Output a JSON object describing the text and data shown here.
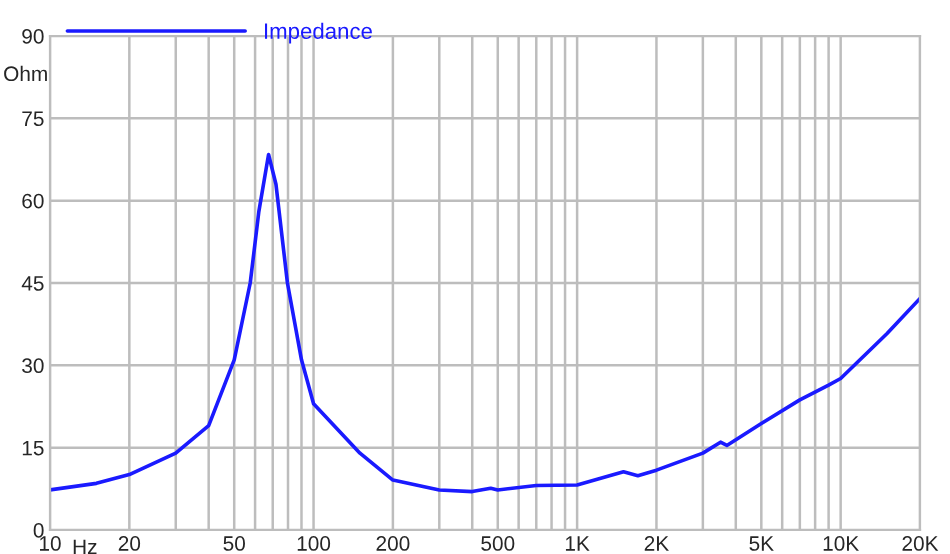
{
  "chart_data": {
    "type": "line",
    "xlabel": "Hz",
    "ylabel": "Ohm",
    "log": "x",
    "grid": true,
    "legend": "top left",
    "line_style": "solid",
    "marker": "none",
    "xlim": [
      10,
      20000
    ],
    "ylim": [
      0,
      90
    ],
    "xticks": [
      10,
      20,
      {
        "value": 30,
        "label": null
      },
      {
        "value": 40,
        "label": null
      },
      50,
      {
        "value": 60,
        "label": null
      },
      {
        "value": 70,
        "label": null
      },
      {
        "value": 80,
        "label": null
      },
      {
        "value": 90,
        "label": null
      },
      100,
      200,
      {
        "value": 300,
        "label": null
      },
      {
        "value": 400,
        "label": null
      },
      500,
      {
        "value": 600,
        "label": null
      },
      {
        "value": 700,
        "label": null
      },
      {
        "value": 800,
        "label": null
      },
      {
        "value": 900,
        "label": null
      },
      {
        "value": 1000,
        "label": "1K"
      },
      {
        "value": 2000,
        "label": "2K"
      },
      {
        "value": 3000,
        "label": null
      },
      {
        "value": 4000,
        "label": null
      },
      {
        "value": 5000,
        "label": "5K"
      },
      {
        "value": 6000,
        "label": null
      },
      {
        "value": 7000,
        "label": null
      },
      {
        "value": 8000,
        "label": null
      },
      {
        "value": 9000,
        "label": null
      },
      {
        "value": 10000,
        "label": "10K"
      },
      {
        "value": 20000,
        "label": "20K"
      }
    ],
    "yticks": [
      0,
      15,
      30,
      45,
      60,
      75,
      90
    ],
    "series": [
      {
        "name": "Impedance",
        "color": "#1a1aff",
        "x": [
          10,
          15,
          20,
          30,
          40,
          50,
          57.5,
          62,
          67.5,
          72,
          79.6,
          90,
          100,
          150,
          200,
          300,
          400,
          470,
          500,
          700,
          1000,
          1500,
          1700,
          2000,
          3000,
          3500,
          3700,
          5000,
          7000,
          9000,
          10000,
          15000,
          20000
        ],
        "values": [
          7.3,
          8.5,
          10.1,
          14,
          19,
          31,
          45,
          58,
          68.4,
          63,
          45,
          31,
          23,
          14,
          9.1,
          7.3,
          7.0,
          7.6,
          7.3,
          8.1,
          8.2,
          10.6,
          9.9,
          10.9,
          14,
          16,
          15.4,
          19.4,
          23.7,
          26.4,
          27.6,
          35.8,
          42.2
        ]
      }
    ]
  }
}
